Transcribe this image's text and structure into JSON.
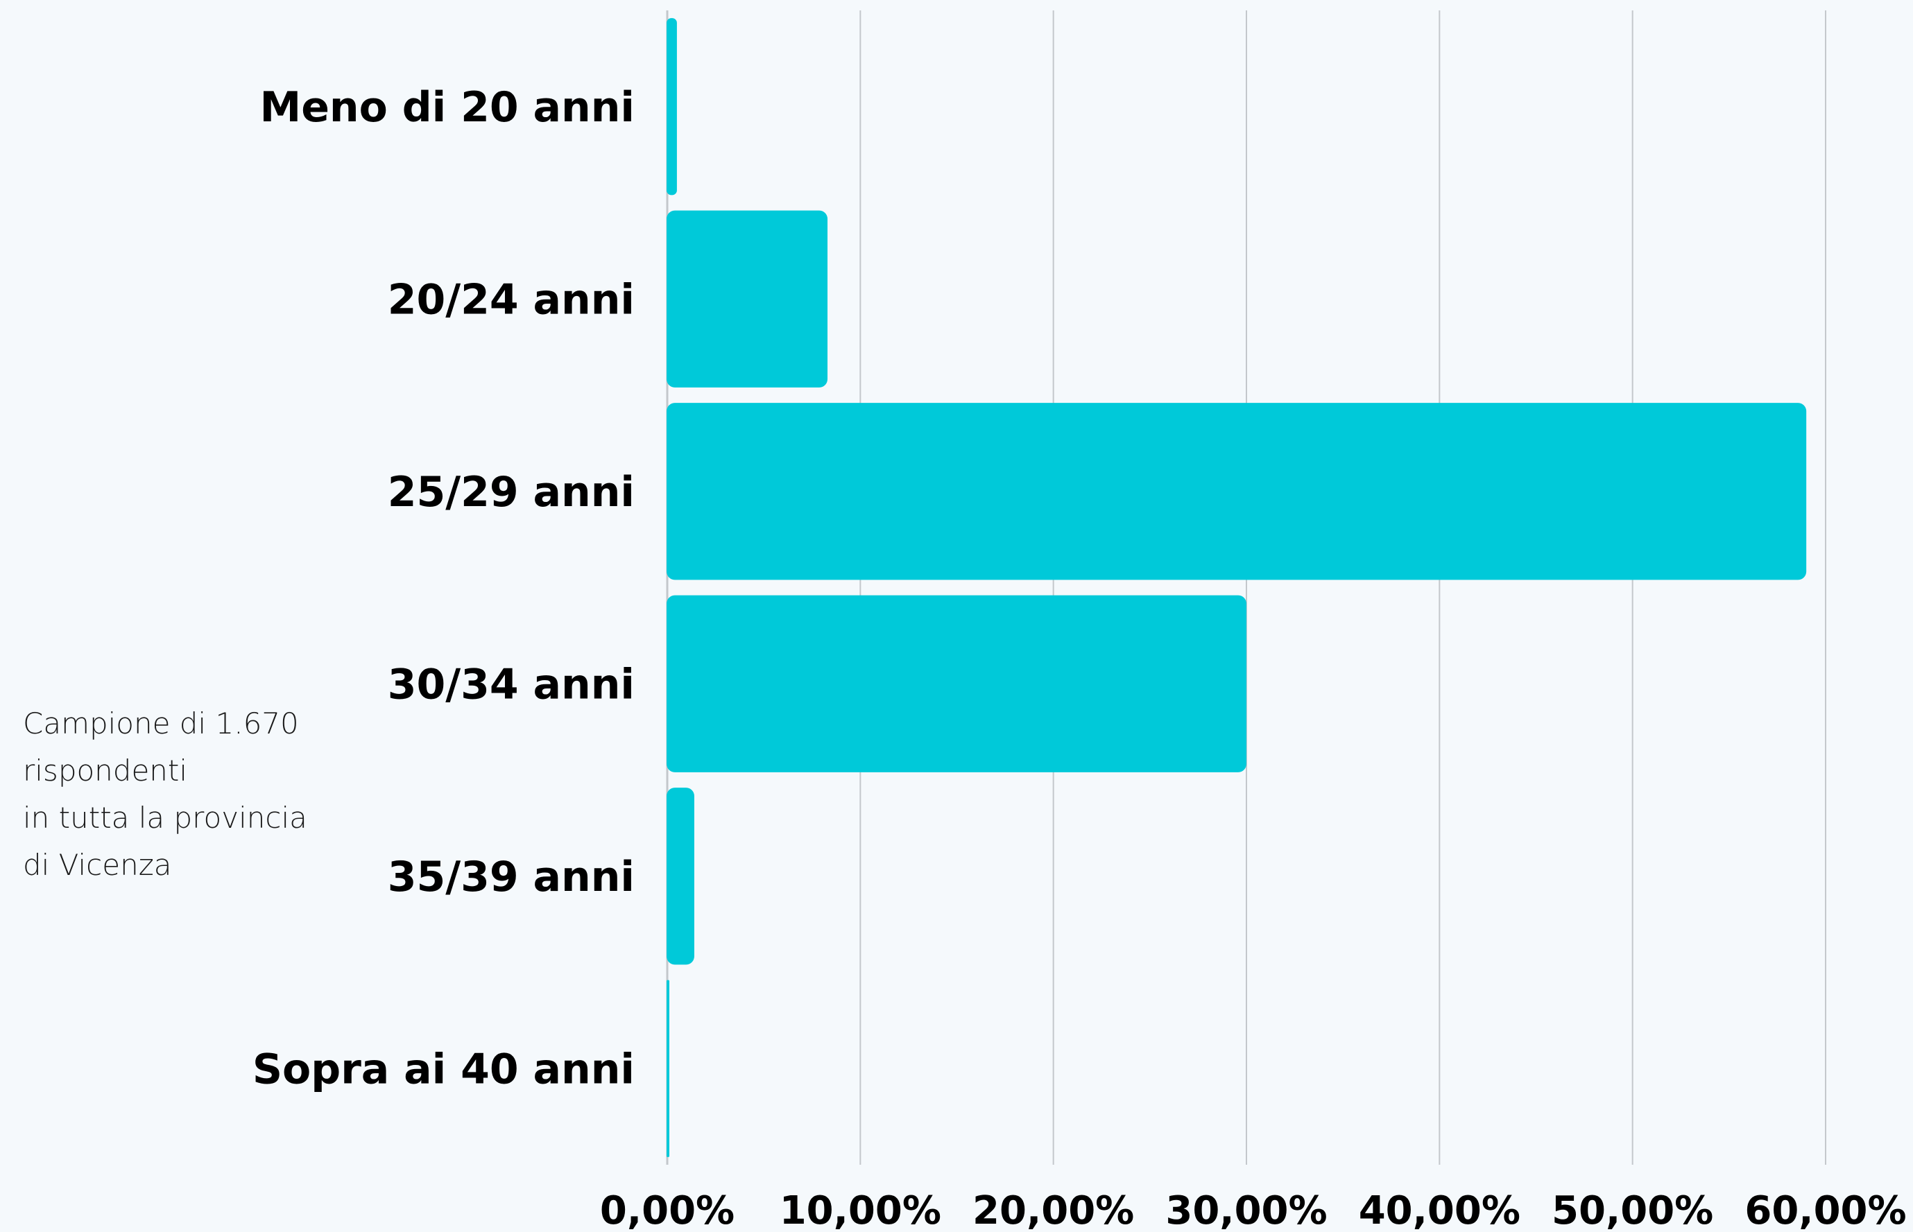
{
  "colors": {
    "background": "#f5f9fc",
    "bar": "#00c9d9",
    "grid": "#c4c8cc",
    "text": "#000000"
  },
  "note": {
    "lines": [
      "Campione di 1.670",
      "rispondenti",
      "in tutta la provincia",
      "di Vicenza"
    ]
  },
  "chart_data": {
    "type": "bar",
    "orientation": "horizontal",
    "categories": [
      "Meno di 20 anni",
      "20/24 anni",
      "25/29 anni",
      "30/34 anni",
      "35/39 anni",
      "Sopra ai 40 anni"
    ],
    "values": [
      0.5,
      8.3,
      59.0,
      30.0,
      1.4,
      0.1
    ],
    "unit": "%",
    "xlim": [
      0,
      60
    ],
    "xticks": [
      0,
      10,
      20,
      30,
      40,
      50,
      60
    ],
    "xtick_labels": [
      "0,00%",
      "10,00%",
      "20,00%",
      "30,00%",
      "40,00%",
      "50,00%",
      "60,00%"
    ],
    "grid": true,
    "legend": "none",
    "title": "",
    "xlabel": "",
    "ylabel": ""
  }
}
